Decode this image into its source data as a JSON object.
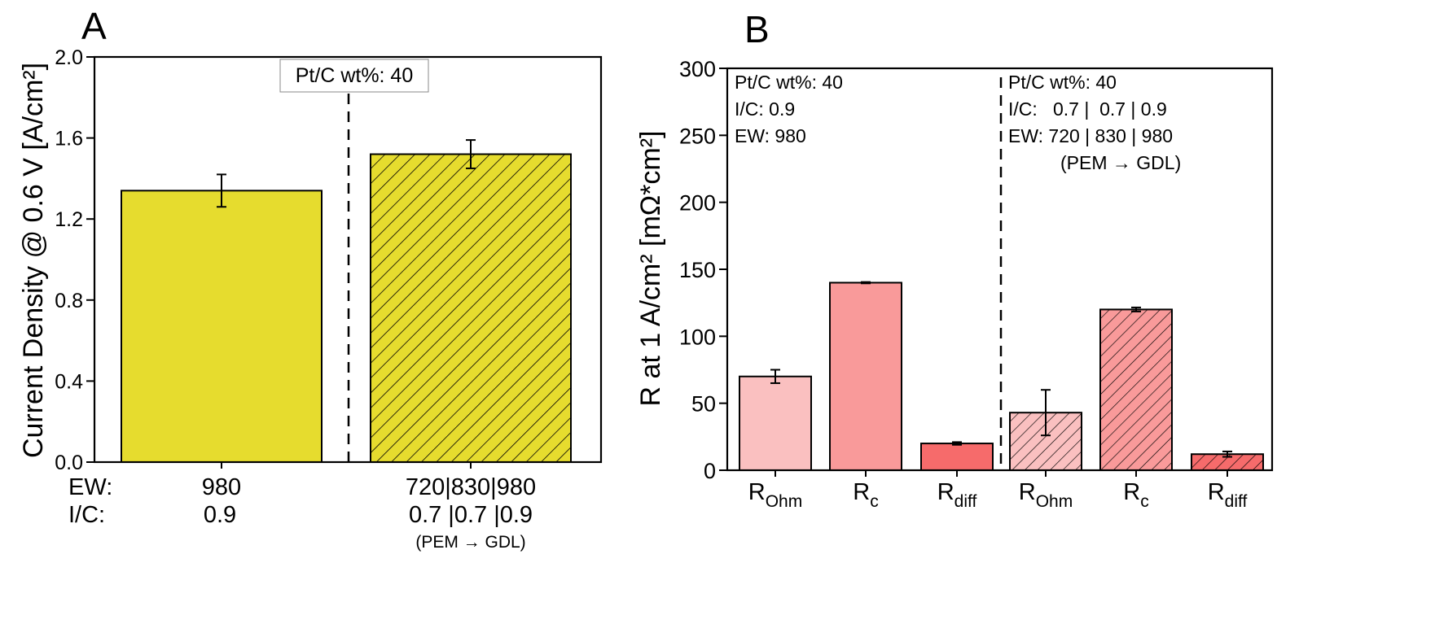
{
  "colors": {
    "panelA_bar": "#e6dc2e",
    "panelB_ohm": "#fac0c0",
    "panelB_rc": "#f99a9a",
    "panelB_rdiff": "#f66b6b",
    "hatch": "#000000"
  },
  "chart_data": [
    {
      "type": "bar",
      "panel_label": "A",
      "ylabel": "Current Density @ 0.6 V [A/cm²]",
      "ylim": [
        0.0,
        2.0
      ],
      "yticks": [
        "0.0",
        "0.4",
        "0.8",
        "1.2",
        "1.6",
        "2.0"
      ],
      "categories": [
        "980",
        "720|830|980"
      ],
      "values": [
        1.34,
        1.52
      ],
      "errors": [
        0.08,
        0.07
      ],
      "hatched": [
        false,
        true
      ],
      "grid": false,
      "annotation": "Pt/C wt%: 40",
      "row_labels": [
        "EW:",
        "I/C:"
      ],
      "cat_rows": [
        [
          "980",
          "0.9",
          ""
        ],
        [
          "720|830|980",
          "0.7 |0.7 |0.9",
          "(PEM → GDL)"
        ]
      ]
    },
    {
      "type": "bar",
      "panel_label": "B",
      "ylabel": "R at 1 A/cm² [mΩ*cm²]",
      "ylim": [
        0,
        300
      ],
      "yticks": [
        "0",
        "50",
        "100",
        "150",
        "200",
        "250",
        "300"
      ],
      "categories": [
        {
          "main": "R",
          "sub": "Ohm"
        },
        {
          "main": "R",
          "sub": "c"
        },
        {
          "main": "R",
          "sub": "diff"
        },
        {
          "main": "R",
          "sub": "Ohm"
        },
        {
          "main": "R",
          "sub": "c"
        },
        {
          "main": "R",
          "sub": "diff"
        }
      ],
      "values": [
        70,
        140,
        20,
        43,
        120,
        12
      ],
      "errors": [
        5,
        0.5,
        1,
        17,
        1.5,
        2
      ],
      "hatched": [
        false,
        false,
        false,
        true,
        true,
        true
      ],
      "grid": false,
      "left_notes": [
        "Pt/C wt%: 40",
        "I/C: 0.9",
        "EW: 980"
      ],
      "right_notes": [
        "Pt/C wt%: 40",
        "I/C:   0.7 |  0.7 | 0.9",
        "EW: 720 | 830 | 980",
        "(PEM → GDL)"
      ]
    }
  ]
}
